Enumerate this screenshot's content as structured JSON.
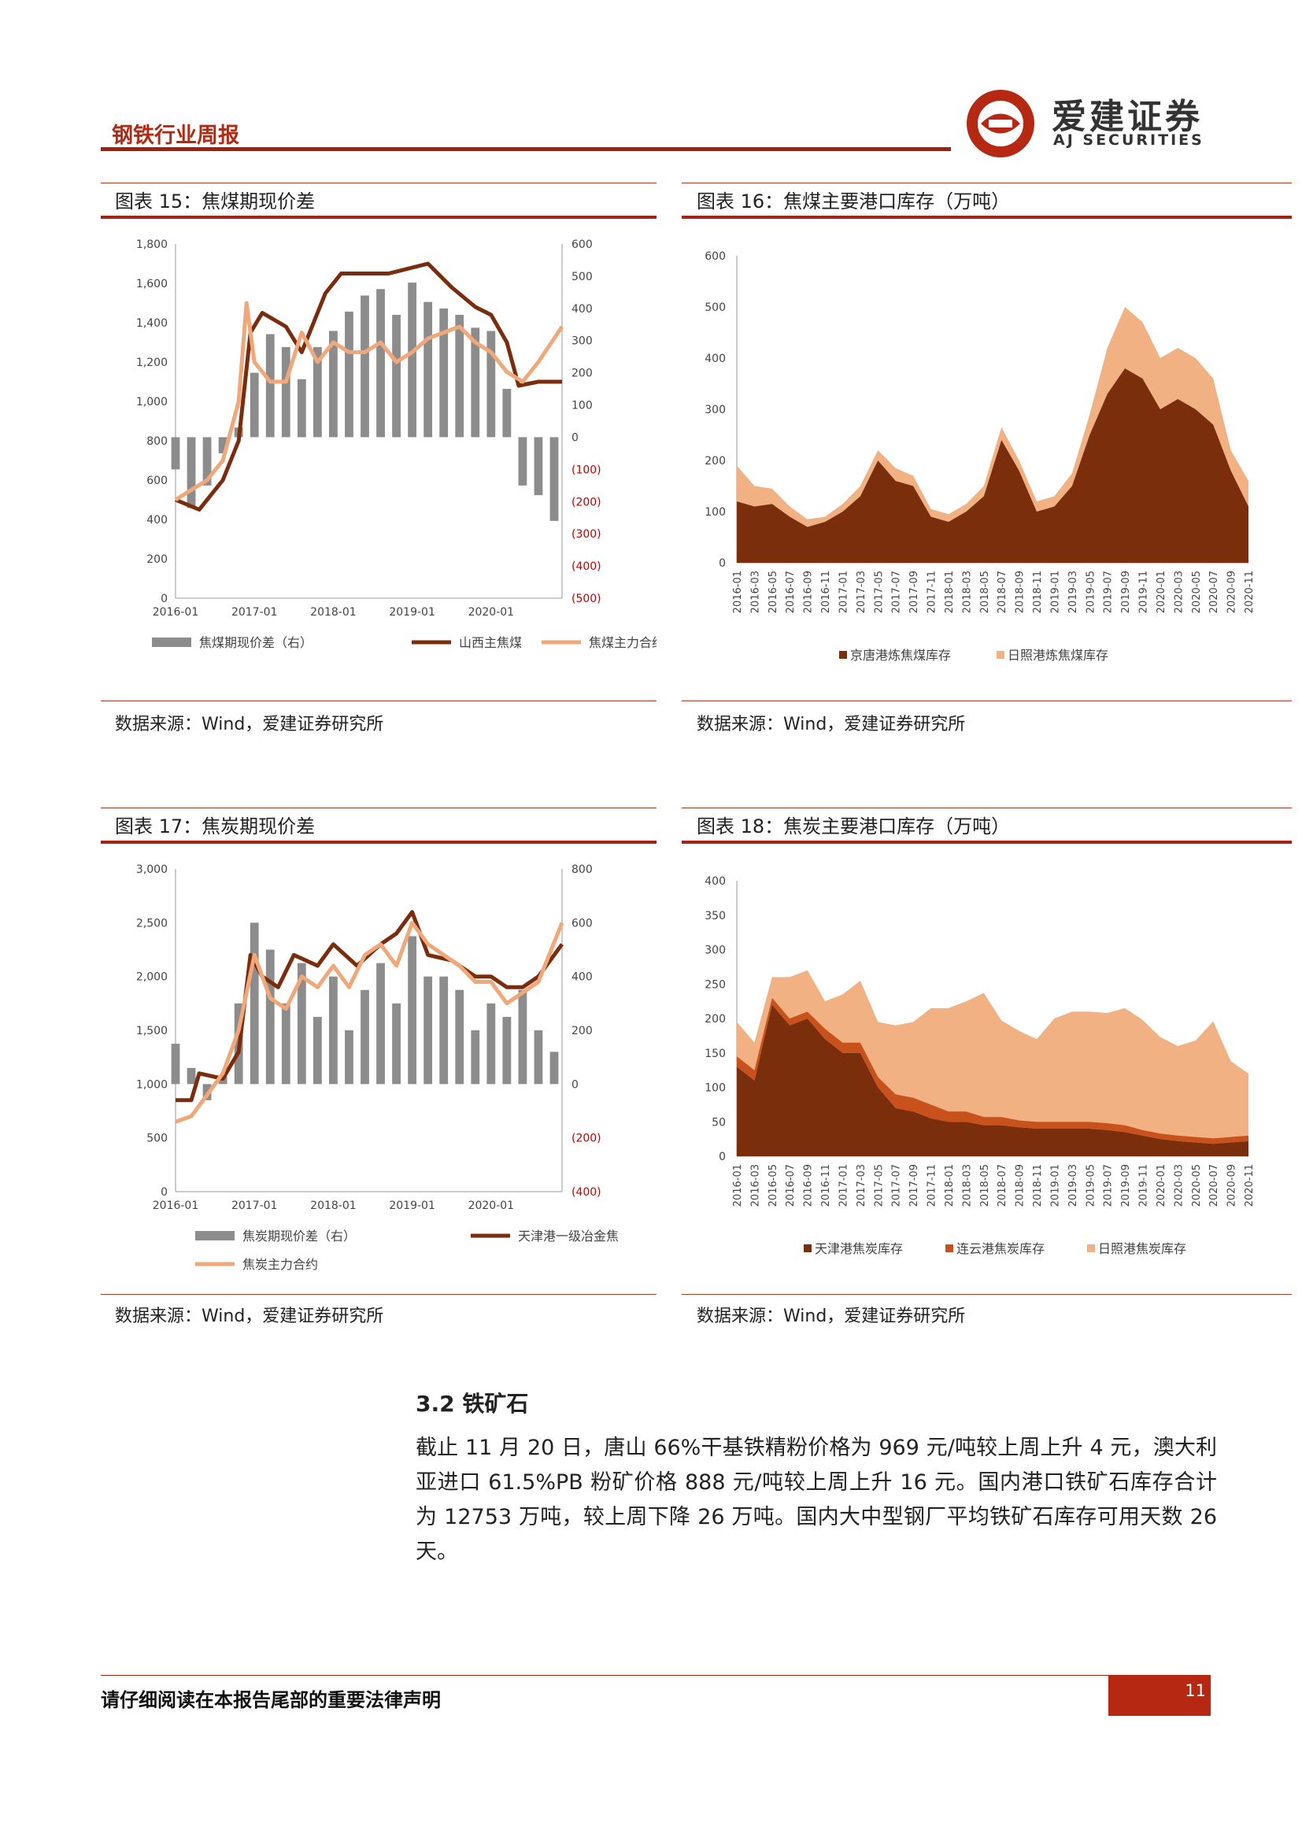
{
  "header": {
    "title": "钢铁行业周报"
  },
  "logo": {
    "cn": "爱建证券",
    "en": "AJ SECURITIES"
  },
  "source": "数据来源：Wind，爱建证券研究所",
  "figures": {
    "f15": {
      "caption": "图表 15：焦煤期现价差"
    },
    "f16": {
      "caption": "图表 16：焦煤主要港口库存（万吨）"
    },
    "f17": {
      "caption": "图表 17：焦炭期现价差"
    },
    "f18": {
      "caption": "图表 18：焦炭主要港口库存（万吨）"
    }
  },
  "section": {
    "heading": "3.2 铁矿石",
    "paragraph": "截止 11 月 20 日，唐山 66%干基铁精粉价格为 969 元/吨较上周上升 4 元，澳大利亚进口 61.5%PB 粉矿价格 888 元/吨较上周上升 16 元。国内港口铁矿石库存合计为 12753 万吨，较上周下降 26 万吨。国内大中型钢厂平均铁矿石库存可用天数 26 天。"
  },
  "footer": {
    "notice": "请仔细阅读在本报告尾部的重要法律声明",
    "page": "11"
  },
  "chart_data": [
    {
      "type": "line",
      "id": "f15",
      "x_ticks": [
        "2016-01",
        "2017-01",
        "2018-01",
        "2019-01",
        "2020-01"
      ],
      "y_left_ticks": [
        "0",
        "200",
        "400",
        "600",
        "800",
        "1,000",
        "1,200",
        "1,400",
        "1,600",
        "1,800"
      ],
      "y_left_range": [
        0,
        1800
      ],
      "y_right_ticks": [
        "600",
        "500",
        "400",
        "300",
        "200",
        "100",
        "0",
        "(100)",
        "(200)",
        "(300)",
        "(400)",
        "(500)"
      ],
      "y_right_range": [
        -500,
        600
      ],
      "series": [
        {
          "name": "焦煤期现价差（右）",
          "kind": "bar",
          "color": "#8c8c8c",
          "x": [
            2016.0,
            2016.2,
            2016.4,
            2016.6,
            2016.8,
            2017.0,
            2017.2,
            2017.4,
            2017.6,
            2017.8,
            2018.0,
            2018.2,
            2018.4,
            2018.6,
            2018.8,
            2019.0,
            2019.2,
            2019.4,
            2019.6,
            2019.8,
            2020.0,
            2020.2,
            2020.4,
            2020.6,
            2020.8
          ],
          "values": [
            -100,
            -220,
            -150,
            -50,
            30,
            200,
            320,
            280,
            180,
            280,
            330,
            390,
            440,
            460,
            380,
            480,
            420,
            400,
            380,
            340,
            330,
            150,
            -150,
            -180,
            -260
          ]
        },
        {
          "name": "山西主焦煤",
          "kind": "line",
          "color": "#7a2c0c",
          "x": [
            2016.0,
            2016.3,
            2016.6,
            2016.8,
            2016.95,
            2017.1,
            2017.4,
            2017.6,
            2017.9,
            2018.1,
            2018.4,
            2018.7,
            2019.0,
            2019.2,
            2019.5,
            2019.8,
            2020.0,
            2020.2,
            2020.35,
            2020.6,
            2020.9
          ],
          "values": [
            500,
            450,
            600,
            800,
            1350,
            1450,
            1380,
            1250,
            1550,
            1650,
            1650,
            1650,
            1680,
            1700,
            1580,
            1480,
            1440,
            1300,
            1080,
            1100,
            1100
          ]
        },
        {
          "name": "焦煤主力合约",
          "kind": "line",
          "color": "#f0a77a",
          "x": [
            2016.0,
            2016.2,
            2016.4,
            2016.6,
            2016.8,
            2016.9,
            2017.0,
            2017.2,
            2017.4,
            2017.6,
            2017.8,
            2018.0,
            2018.2,
            2018.4,
            2018.6,
            2018.8,
            2019.0,
            2019.2,
            2019.4,
            2019.6,
            2019.8,
            2020.0,
            2020.2,
            2020.4,
            2020.6,
            2020.9
          ],
          "values": [
            500,
            550,
            600,
            700,
            1000,
            1500,
            1200,
            1100,
            1100,
            1350,
            1200,
            1300,
            1250,
            1250,
            1300,
            1200,
            1250,
            1320,
            1350,
            1380,
            1300,
            1250,
            1150,
            1100,
            1200,
            1380
          ]
        }
      ]
    },
    {
      "type": "area",
      "id": "f16",
      "y_ticks": [
        "0",
        "100",
        "200",
        "300",
        "400",
        "500",
        "600"
      ],
      "ylim": [
        0,
        600
      ],
      "categories": [
        "2016-01",
        "2016-03",
        "2016-05",
        "2016-07",
        "2016-09",
        "2016-11",
        "2017-01",
        "2017-03",
        "2017-05",
        "2017-07",
        "2017-09",
        "2017-11",
        "2018-01",
        "2018-03",
        "2018-05",
        "2018-07",
        "2018-09",
        "2018-11",
        "2019-01",
        "2019-03",
        "2019-05",
        "2019-07",
        "2019-09",
        "2019-11",
        "2020-01",
        "2020-03",
        "2020-05",
        "2020-07",
        "2020-09",
        "2020-11"
      ],
      "series": [
        {
          "name": "京唐港炼焦煤库存",
          "color": "#7b2e0b",
          "values": [
            120,
            110,
            115,
            90,
            70,
            80,
            100,
            130,
            200,
            160,
            150,
            90,
            80,
            100,
            130,
            240,
            180,
            100,
            110,
            150,
            250,
            330,
            380,
            360,
            300,
            320,
            300,
            270,
            180,
            110
          ]
        },
        {
          "name": "日照港炼焦煤库存",
          "color": "#f2b183",
          "values": [
            70,
            40,
            30,
            20,
            15,
            10,
            15,
            20,
            20,
            25,
            20,
            15,
            15,
            15,
            20,
            25,
            20,
            20,
            20,
            25,
            40,
            90,
            120,
            110,
            100,
            100,
            100,
            90,
            40,
            50
          ]
        }
      ]
    },
    {
      "type": "line",
      "id": "f17",
      "x_ticks": [
        "2016-01",
        "2017-01",
        "2018-01",
        "2019-01",
        "2020-01"
      ],
      "y_left_ticks": [
        "0",
        "500",
        "1,000",
        "1,500",
        "2,000",
        "2,500",
        "3,000"
      ],
      "y_left_range": [
        0,
        3000
      ],
      "y_right_ticks": [
        "800",
        "600",
        "400",
        "200",
        "0",
        "(200)",
        "(400)"
      ],
      "y_right_range": [
        -400,
        800
      ],
      "series": [
        {
          "name": "焦炭期现价差（右）",
          "kind": "bar",
          "color": "#8c8c8c",
          "x": [
            2016.0,
            2016.2,
            2016.4,
            2016.6,
            2016.8,
            2017.0,
            2017.2,
            2017.4,
            2017.6,
            2017.8,
            2018.0,
            2018.2,
            2018.4,
            2018.6,
            2018.8,
            2019.0,
            2019.2,
            2019.4,
            2019.6,
            2019.8,
            2020.0,
            2020.2,
            2020.4,
            2020.6,
            2020.8
          ],
          "values": [
            150,
            60,
            -60,
            30,
            300,
            600,
            500,
            300,
            450,
            250,
            400,
            200,
            350,
            450,
            300,
            550,
            400,
            400,
            350,
            200,
            300,
            250,
            350,
            200,
            120
          ]
        },
        {
          "name": "天津港一级冶金焦",
          "kind": "line",
          "color": "#7a2c0c",
          "x": [
            2016.0,
            2016.2,
            2016.3,
            2016.6,
            2016.8,
            2016.95,
            2017.1,
            2017.3,
            2017.5,
            2017.8,
            2018.0,
            2018.3,
            2018.6,
            2018.8,
            2019.0,
            2019.2,
            2019.5,
            2019.8,
            2020.0,
            2020.2,
            2020.4,
            2020.6,
            2020.9
          ],
          "values": [
            850,
            850,
            1100,
            1050,
            1300,
            2200,
            2000,
            1900,
            2200,
            2100,
            2300,
            2100,
            2300,
            2400,
            2600,
            2200,
            2150,
            2000,
            2000,
            1900,
            1900,
            2000,
            2300
          ]
        },
        {
          "name": "焦炭主力合约",
          "kind": "line",
          "color": "#f0a77a",
          "x": [
            2016.0,
            2016.2,
            2016.4,
            2016.6,
            2016.8,
            2017.0,
            2017.2,
            2017.4,
            2017.6,
            2017.8,
            2018.0,
            2018.2,
            2018.4,
            2018.6,
            2018.8,
            2019.0,
            2019.2,
            2019.4,
            2019.6,
            2019.8,
            2020.0,
            2020.2,
            2020.4,
            2020.6,
            2020.9
          ],
          "values": [
            650,
            700,
            900,
            1100,
            1500,
            2200,
            1800,
            1700,
            2000,
            1900,
            2100,
            1900,
            2200,
            2300,
            2100,
            2500,
            2300,
            2200,
            2100,
            1950,
            1950,
            1750,
            1850,
            1950,
            2500
          ]
        }
      ]
    },
    {
      "type": "area",
      "id": "f18",
      "y_ticks": [
        "0",
        "50",
        "100",
        "150",
        "200",
        "250",
        "300",
        "350",
        "400"
      ],
      "ylim": [
        0,
        400
      ],
      "categories": [
        "2016-01",
        "2016-03",
        "2016-05",
        "2016-07",
        "2016-09",
        "2016-11",
        "2017-01",
        "2017-03",
        "2017-05",
        "2017-07",
        "2017-09",
        "2017-11",
        "2018-01",
        "2018-03",
        "2018-05",
        "2018-07",
        "2018-09",
        "2018-11",
        "2019-01",
        "2019-03",
        "2019-05",
        "2019-07",
        "2019-09",
        "2019-11",
        "2020-01",
        "2020-03",
        "2020-05",
        "2020-07",
        "2020-09",
        "2020-11"
      ],
      "series": [
        {
          "name": "天津港焦炭库存",
          "color": "#7b2e0b",
          "values": [
            130,
            110,
            220,
            190,
            200,
            170,
            150,
            150,
            100,
            70,
            65,
            55,
            50,
            50,
            45,
            45,
            42,
            40,
            40,
            40,
            40,
            38,
            35,
            30,
            25,
            22,
            20,
            18,
            20,
            22
          ]
        },
        {
          "name": "连云港焦炭库存",
          "color": "#c9521c",
          "values": [
            15,
            15,
            10,
            10,
            10,
            15,
            15,
            15,
            15,
            20,
            20,
            20,
            15,
            15,
            12,
            12,
            10,
            10,
            10,
            10,
            10,
            10,
            10,
            8,
            8,
            8,
            8,
            8,
            8,
            8
          ]
        },
        {
          "name": "日照港焦炭库存",
          "color": "#f2b183",
          "values": [
            50,
            40,
            30,
            60,
            60,
            40,
            70,
            90,
            80,
            100,
            110,
            140,
            150,
            160,
            180,
            140,
            130,
            120,
            150,
            160,
            160,
            160,
            170,
            160,
            140,
            130,
            140,
            170,
            110,
            90
          ]
        }
      ]
    }
  ]
}
